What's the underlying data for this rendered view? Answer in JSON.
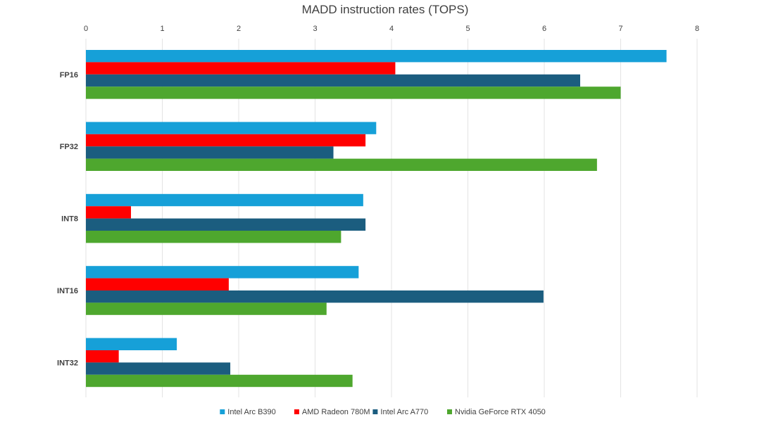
{
  "chart_data": {
    "type": "bar",
    "orientation": "horizontal",
    "title": "MADD instruction rates (TOPS)",
    "xlabel": "",
    "ylabel": "",
    "xlim": [
      0,
      8
    ],
    "x_ticks": [
      "0",
      "1",
      "2",
      "3",
      "4",
      "5",
      "6",
      "7",
      "8"
    ],
    "x_axis_position": "top",
    "grid": true,
    "legend_position": "bottom",
    "categories": [
      "FP16",
      "FP32",
      "INT8",
      "INT16",
      "INT32"
    ],
    "series": [
      {
        "name": "Intel Arc B390",
        "color": "#16a0d8",
        "values": [
          7.6,
          3.8,
          3.63,
          3.57,
          1.19
        ]
      },
      {
        "name": "AMD Radeon 780M",
        "color": "#ff0000",
        "values": [
          4.05,
          3.66,
          0.59,
          1.87,
          0.43
        ]
      },
      {
        "name": "Intel Arc A770",
        "color": "#1b5d7f",
        "values": [
          6.47,
          3.24,
          3.66,
          5.99,
          1.89
        ]
      },
      {
        "name": "Nvidia GeForce RTX 4050",
        "color": "#4ea72e",
        "values": [
          7.0,
          6.69,
          3.34,
          3.15,
          3.49
        ]
      }
    ]
  }
}
